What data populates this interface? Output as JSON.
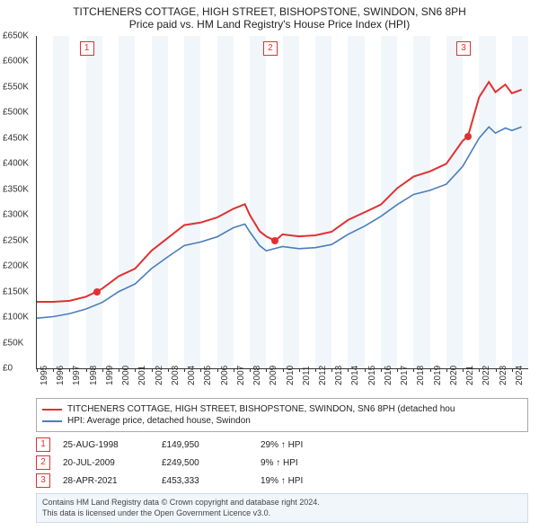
{
  "title": {
    "line1": "TITCHENERS COTTAGE, HIGH STREET, BISHOPSTONE, SWINDON, SN6 8PH",
    "line2": "Price paid vs. HM Land Registry's House Price Index (HPI)"
  },
  "chart": {
    "type": "line",
    "background_color": "#ffffff",
    "band_color": "#f1f6fb",
    "xlim": [
      1995,
      2025
    ],
    "ylim": [
      0,
      650000
    ],
    "ytick_step": 50000,
    "yticks": [
      "£0",
      "£50K",
      "£100K",
      "£150K",
      "£200K",
      "£250K",
      "£300K",
      "£350K",
      "£400K",
      "£450K",
      "£500K",
      "£550K",
      "£600K",
      "£650K"
    ],
    "xticks": [
      1995,
      1996,
      1997,
      1998,
      1999,
      2000,
      2001,
      2002,
      2003,
      2004,
      2005,
      2006,
      2007,
      2008,
      2009,
      2010,
      2011,
      2012,
      2013,
      2014,
      2015,
      2016,
      2017,
      2018,
      2019,
      2020,
      2021,
      2022,
      2023,
      2024
    ],
    "series": [
      {
        "name": "price_paid",
        "color": "#e03131",
        "width": 2,
        "points": [
          [
            1995,
            130000
          ],
          [
            1996,
            130000
          ],
          [
            1997,
            132000
          ],
          [
            1998,
            140000
          ],
          [
            1998.65,
            149950
          ],
          [
            1999,
            156000
          ],
          [
            2000,
            180000
          ],
          [
            2001,
            195000
          ],
          [
            2002,
            230000
          ],
          [
            2003,
            255000
          ],
          [
            2004,
            280000
          ],
          [
            2005,
            285000
          ],
          [
            2006,
            295000
          ],
          [
            2007,
            312000
          ],
          [
            2007.7,
            321000
          ],
          [
            2008,
            300000
          ],
          [
            2008.6,
            268000
          ],
          [
            2009,
            258000
          ],
          [
            2009.55,
            249500
          ],
          [
            2010,
            262000
          ],
          [
            2011,
            258000
          ],
          [
            2012,
            260000
          ],
          [
            2013,
            267000
          ],
          [
            2014,
            290000
          ],
          [
            2015,
            305000
          ],
          [
            2016,
            320000
          ],
          [
            2017,
            352000
          ],
          [
            2018,
            375000
          ],
          [
            2019,
            385000
          ],
          [
            2020,
            400000
          ],
          [
            2021,
            445000
          ],
          [
            2021.32,
            453333
          ],
          [
            2022,
            530000
          ],
          [
            2022.6,
            560000
          ],
          [
            2023,
            540000
          ],
          [
            2023.6,
            555000
          ],
          [
            2024,
            538000
          ],
          [
            2024.6,
            545000
          ]
        ]
      },
      {
        "name": "hpi",
        "color": "#4a7ebb",
        "width": 1.6,
        "points": [
          [
            1995,
            98000
          ],
          [
            1996,
            101000
          ],
          [
            1997,
            107000
          ],
          [
            1998,
            116000
          ],
          [
            1999,
            129000
          ],
          [
            2000,
            150000
          ],
          [
            2001,
            165000
          ],
          [
            2002,
            195000
          ],
          [
            2003,
            218000
          ],
          [
            2004,
            240000
          ],
          [
            2005,
            247000
          ],
          [
            2006,
            257000
          ],
          [
            2007,
            275000
          ],
          [
            2007.7,
            282000
          ],
          [
            2008,
            267000
          ],
          [
            2008.6,
            240000
          ],
          [
            2009,
            230000
          ],
          [
            2010,
            238000
          ],
          [
            2011,
            234000
          ],
          [
            2012,
            236000
          ],
          [
            2013,
            242000
          ],
          [
            2014,
            262000
          ],
          [
            2015,
            278000
          ],
          [
            2016,
            297000
          ],
          [
            2017,
            320000
          ],
          [
            2018,
            340000
          ],
          [
            2019,
            348000
          ],
          [
            2020,
            360000
          ],
          [
            2021,
            395000
          ],
          [
            2022,
            450000
          ],
          [
            2022.6,
            472000
          ],
          [
            2023,
            460000
          ],
          [
            2023.6,
            470000
          ],
          [
            2024,
            465000
          ],
          [
            2024.6,
            472000
          ]
        ]
      }
    ],
    "markers": [
      {
        "n": "1",
        "x": 1998.65,
        "y": 149950,
        "box_x": 1998.0
      },
      {
        "n": "2",
        "x": 2009.55,
        "y": 249500,
        "box_x": 2009.2
      },
      {
        "n": "3",
        "x": 2021.32,
        "y": 453333,
        "box_x": 2021.0
      }
    ]
  },
  "legend": {
    "items": [
      {
        "color": "#e03131",
        "label": "TITCHENERS COTTAGE, HIGH STREET, BISHOPSTONE, SWINDON, SN6 8PH (detached hou"
      },
      {
        "color": "#4a7ebb",
        "label": "HPI: Average price, detached house, Swindon"
      }
    ]
  },
  "events": [
    {
      "n": "1",
      "date": "25-AUG-1998",
      "price": "£149,950",
      "pct": "29% ↑ HPI"
    },
    {
      "n": "2",
      "date": "20-JUL-2009",
      "price": "£249,500",
      "pct": "9% ↑ HPI"
    },
    {
      "n": "3",
      "date": "28-APR-2021",
      "price": "£453,333",
      "pct": "19% ↑ HPI"
    }
  ],
  "footer": {
    "line1": "Contains HM Land Registry data © Crown copyright and database right 2024.",
    "line2": "This data is licensed under the Open Government Licence v3.0."
  }
}
